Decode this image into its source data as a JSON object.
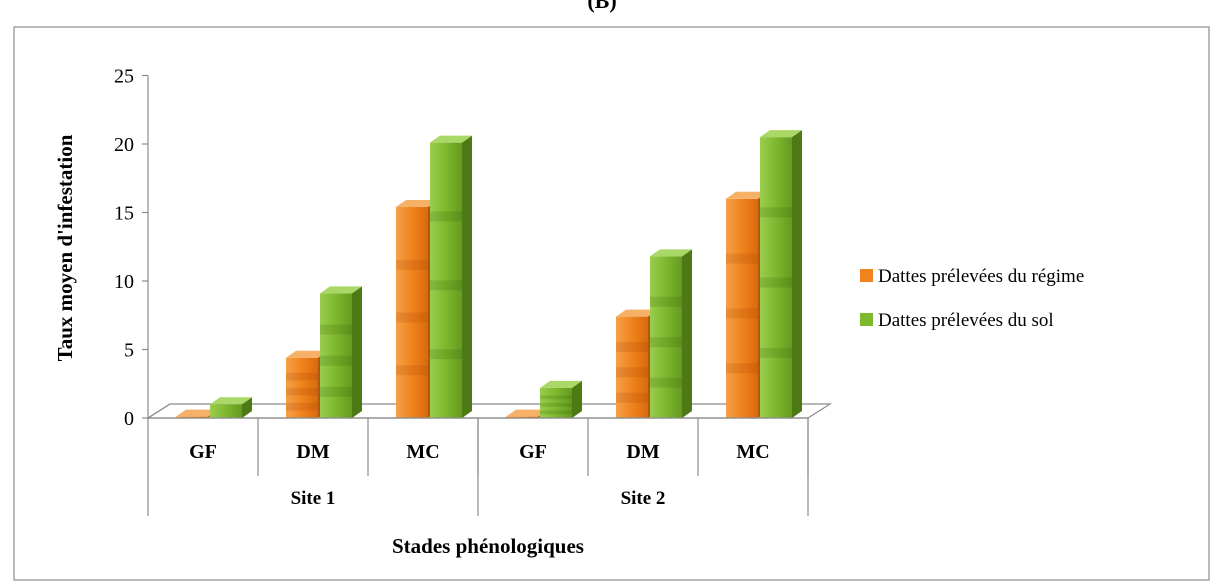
{
  "chart_data": {
    "type": "bar",
    "title": "(B)",
    "xlabel": "Stades phénologiques",
    "ylabel": "Taux moyen d'infestation",
    "ylim": [
      0,
      25
    ],
    "yticks": [
      "0",
      "5",
      "10",
      "15",
      "20",
      "25"
    ],
    "groups": [
      {
        "label": "Site 1",
        "categories": [
          "GF",
          "DM",
          "MC"
        ]
      },
      {
        "label": "Site 2",
        "categories": [
          "GF",
          "DM",
          "MC"
        ]
      }
    ],
    "categories": [
      "GF",
      "DM",
      "MC",
      "GF",
      "DM",
      "MC"
    ],
    "series": [
      {
        "name": "Dattes prélevées du régime",
        "color": "#F0831C",
        "values": [
          0.1,
          4.4,
          15.4,
          0.1,
          7.4,
          16.0
        ]
      },
      {
        "name": "Dattes prélevées du sol",
        "color": "#7DB82E",
        "values": [
          1.0,
          9.1,
          20.1,
          2.2,
          11.8,
          20.5
        ]
      }
    ],
    "grid": false,
    "legend_position": "right",
    "style": "3d-column"
  }
}
